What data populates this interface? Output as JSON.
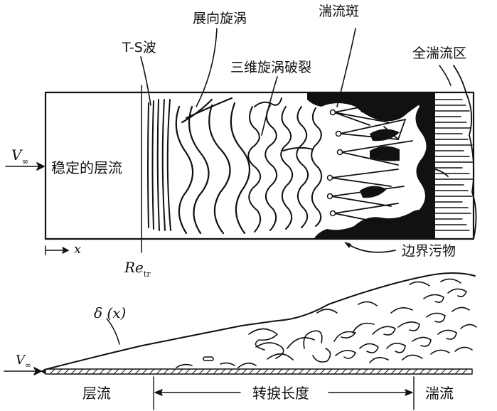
{
  "top_diagram": {
    "labels": {
      "ts_wave": "T-S波",
      "spanwise_vortex": "展向旋涡",
      "turbulent_spot": "湍流斑",
      "fully_turbulent": "全湍流区",
      "vortex_breakdown": "三维旋涡破裂",
      "stable_laminar": "稳定的层流",
      "boundary_contamination": "边界污物",
      "x_axis": "x",
      "re_main": "Re",
      "re_sub": "tr",
      "v_main": "V",
      "v_sub": "∞"
    }
  },
  "bottom_diagram": {
    "labels": {
      "delta": "δ (x)",
      "v_main": "V",
      "v_sub": "∞",
      "laminar": "层流",
      "transition_length": "转捩长度",
      "turbulent": "湍流"
    }
  },
  "colors": {
    "ink": "#111111",
    "background": "#ffffff"
  }
}
